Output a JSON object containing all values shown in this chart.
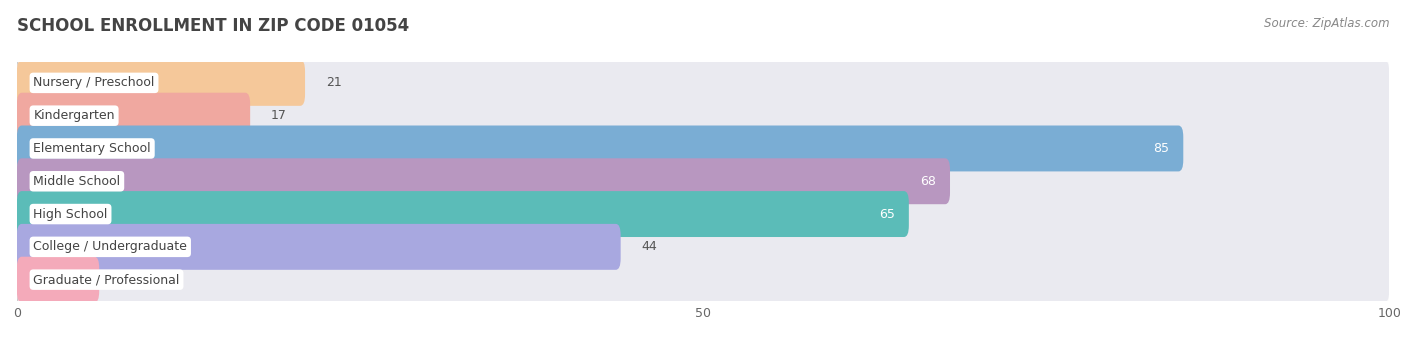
{
  "title": "SCHOOL ENROLLMENT IN ZIP CODE 01054",
  "source": "Source: ZipAtlas.com",
  "categories": [
    "Nursery / Preschool",
    "Kindergarten",
    "Elementary School",
    "Middle School",
    "High School",
    "College / Undergraduate",
    "Graduate / Professional"
  ],
  "values": [
    21,
    17,
    85,
    68,
    65,
    44,
    6
  ],
  "bar_colors": [
    "#f5c89a",
    "#f0a8a0",
    "#7aadd4",
    "#b897c0",
    "#5bbcb8",
    "#a8a8e0",
    "#f4aaba"
  ],
  "bar_bg_color": "#eaeaf0",
  "xlim": [
    0,
    100
  ],
  "xticks": [
    0,
    50,
    100
  ],
  "bar_height": 0.7,
  "title_fontsize": 12,
  "label_fontsize": 9,
  "value_fontsize": 9,
  "source_fontsize": 8.5,
  "background_color": "#ffffff",
  "label_bg_color": "#ffffff",
  "value_color_inside": "#ffffff",
  "value_color_outside": "#555555",
  "grid_color": "#cccccc",
  "text_color": "#444444"
}
